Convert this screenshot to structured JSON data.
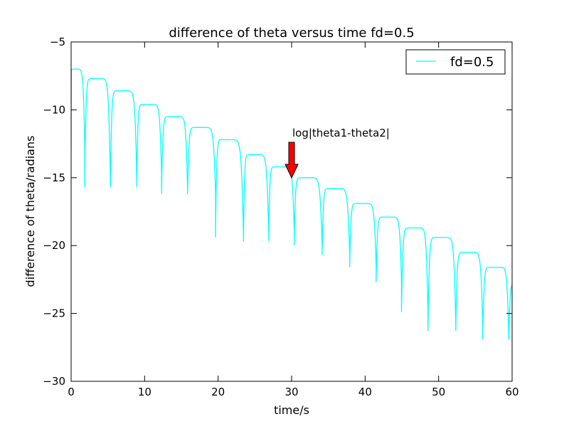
{
  "chart_data": {
    "type": "line",
    "title": "difference of theta versus time  fd=0.5",
    "xlabel": "time/s",
    "ylabel": "difference of theta/radians",
    "xlim": [
      0,
      60
    ],
    "ylim": [
      -30,
      -5
    ],
    "xticks": [
      0,
      10,
      20,
      30,
      40,
      50,
      60
    ],
    "yticks": [
      -30,
      -25,
      -20,
      -15,
      -10,
      -5
    ],
    "grid": false,
    "legend": {
      "placement": "top-right",
      "entries": [
        "fd=0.5"
      ]
    },
    "annotation": {
      "text": "log|theta1-theta2|",
      "points_to": [
        30,
        -15.0
      ]
    },
    "series": [
      {
        "name": "fd=0.5",
        "color": "#00ffff",
        "lobes": [
          {
            "start": 0.0,
            "end": 1.85,
            "peak_x": 0.15,
            "peak": -7.0,
            "dip": -12.6
          },
          {
            "start": 1.85,
            "end": 5.35,
            "peak_x": 3.3,
            "peak": -7.7,
            "dip": -15.7
          },
          {
            "start": 5.35,
            "end": 8.95,
            "peak_x": 6.8,
            "peak": -8.6,
            "dip": -15.7
          },
          {
            "start": 8.95,
            "end": 12.3,
            "peak_x": 10.3,
            "peak": -9.6,
            "dip": -14.6
          },
          {
            "start": 12.3,
            "end": 15.85,
            "peak_x": 13.9,
            "peak": -10.5,
            "dip": -16.2
          },
          {
            "start": 15.85,
            "end": 19.65,
            "peak_x": 17.4,
            "peak": -11.3,
            "dip": -16.2
          },
          {
            "start": 19.65,
            "end": 23.45,
            "peak_x": 21.0,
            "peak": -12.2,
            "dip": -19.4
          },
          {
            "start": 23.45,
            "end": 26.9,
            "peak_x": 24.7,
            "peak": -13.3,
            "dip": -19.7
          },
          {
            "start": 26.9,
            "end": 30.35,
            "peak_x": 28.2,
            "peak": -14.2,
            "dip": -18.8
          },
          {
            "start": 30.35,
            "end": 34.15,
            "peak_x": 31.8,
            "peak": -15.0,
            "dip": -20.0
          },
          {
            "start": 34.15,
            "end": 37.9,
            "peak_x": 35.6,
            "peak": -15.8,
            "dip": -20.7
          },
          {
            "start": 37.9,
            "end": 41.5,
            "peak_x": 39.4,
            "peak": -16.9,
            "dip": -21.6
          },
          {
            "start": 41.5,
            "end": 44.95,
            "peak_x": 43.0,
            "peak": -17.9,
            "dip": -22.7
          },
          {
            "start": 44.95,
            "end": 48.55,
            "peak_x": 46.6,
            "peak": -18.7,
            "dip": -24.9
          },
          {
            "start": 48.55,
            "end": 52.35,
            "peak_x": 50.2,
            "peak": -19.4,
            "dip": -26.3
          },
          {
            "start": 52.35,
            "end": 56.0,
            "peak_x": 53.9,
            "peak": -20.5,
            "dip": -25.9
          },
          {
            "start": 56.0,
            "end": 59.55,
            "peak_x": 57.6,
            "peak": -21.6,
            "dip": -26.9
          },
          {
            "start": 59.55,
            "end": 60.0,
            "peak_x": 61.0,
            "peak": -22.8,
            "dip": -26.9
          }
        ]
      }
    ]
  }
}
